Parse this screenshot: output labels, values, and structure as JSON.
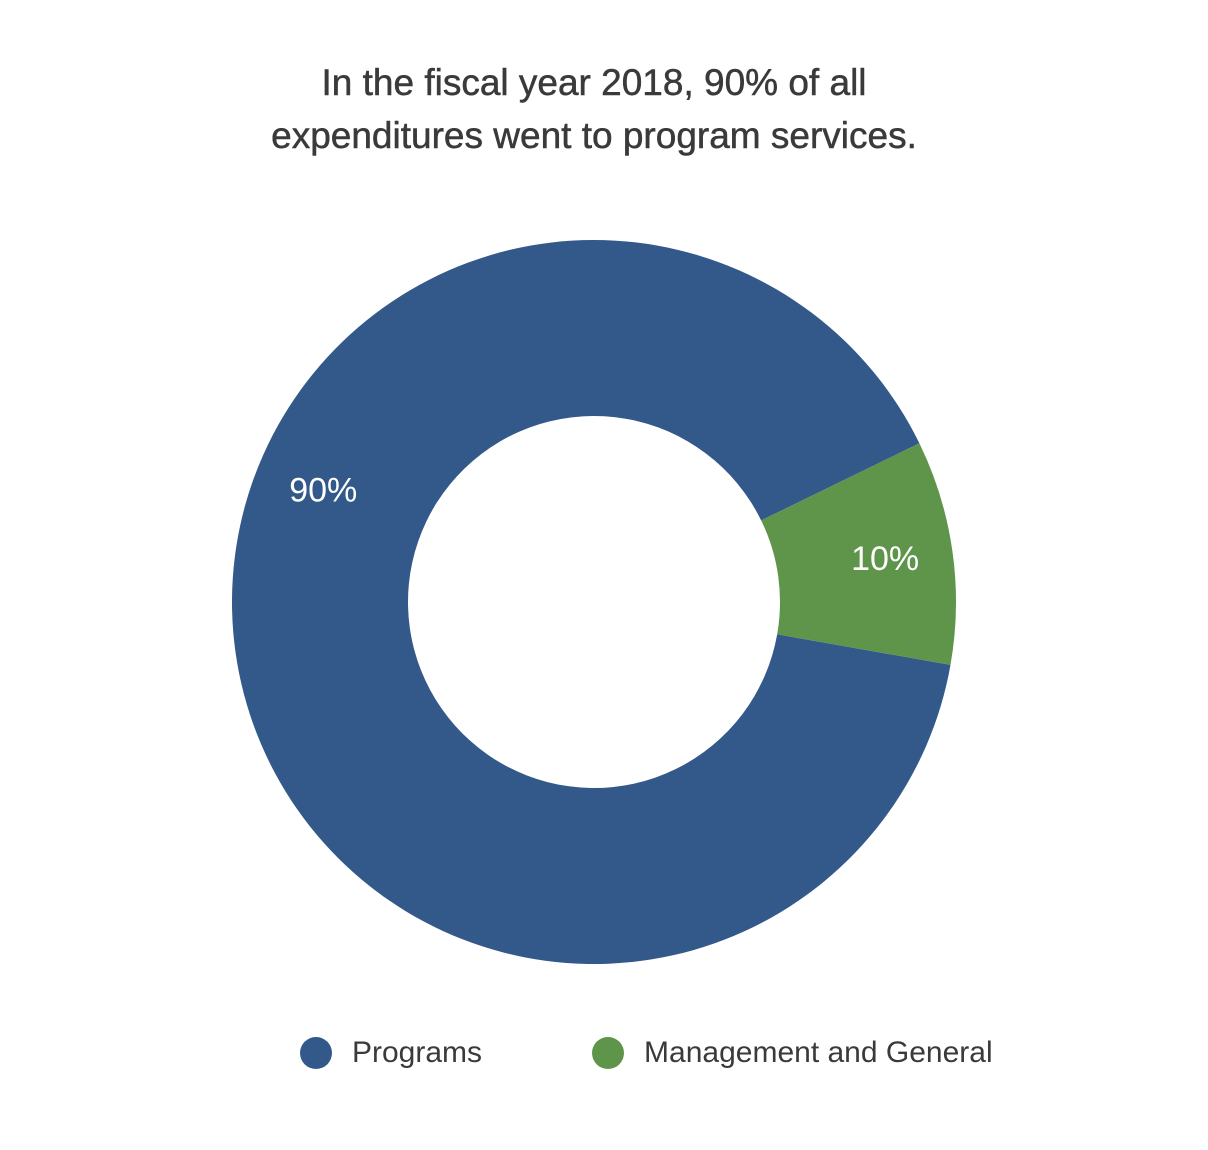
{
  "chart_data": {
    "type": "pie",
    "title": "In the fiscal year 2018, 90% of all expenditures went to program services.",
    "categories": [
      "Programs",
      "Management and General"
    ],
    "values": [
      90,
      10
    ],
    "value_labels": [
      "90%",
      "10%"
    ],
    "colors": [
      "#325989",
      "#5f954b"
    ],
    "donut": true,
    "legend_position": "bottom"
  }
}
